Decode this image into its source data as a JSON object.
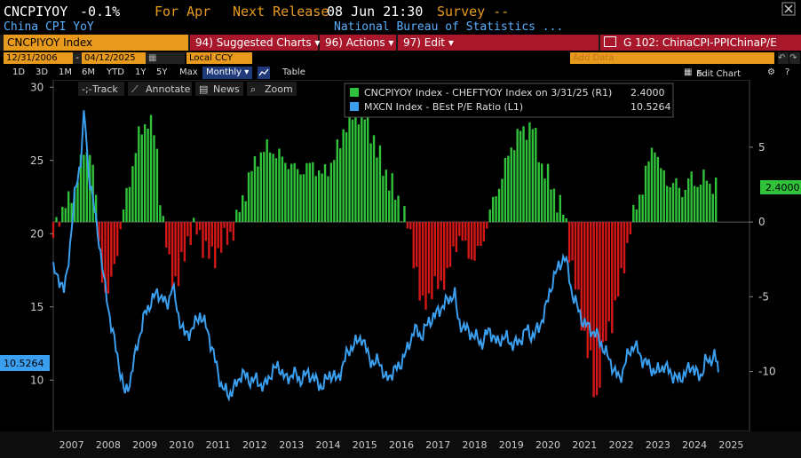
{
  "header": {
    "ticker": "CNCPIYOY",
    "change": "-0.1%",
    "period": "For Apr",
    "next_release_label": "Next Release",
    "next_release": "08 Jun 21:30",
    "survey": "Survey --",
    "subtitle": "China CPI YoY",
    "source": "National Bureau of Statistics ...",
    "close_icon": "close-icon"
  },
  "menu": {
    "security": "CNCPIYOY Index",
    "suggested": "94) Suggested Charts ▾",
    "actions": "96) Actions ▾",
    "edit": "97) Edit ▾",
    "chart_name": "G 102: ChinaCPI-PPIChinaP/E",
    "launch_icon": "launch-icon"
  },
  "controls": {
    "start_date": "12/31/2006",
    "end_date": "04/12/2025",
    "currency": "Local CCY",
    "add_data": "Add Data",
    "undo_icon": "undo-icon",
    "redo_icon": "redo-icon"
  },
  "tabs": {
    "items": [
      "1D",
      "3D",
      "1M",
      "6M",
      "YTD",
      "1Y",
      "5Y",
      "Max"
    ],
    "frequency": "Monthly ▾",
    "table": "Table",
    "edit_chart": "Edit Chart",
    "settings_icon": "gear-icon"
  },
  "tools": {
    "track": "Track",
    "annotate": "Annotate",
    "news": "News",
    "zoom": "Zoom"
  },
  "colors": {
    "green": "#2fc23a",
    "red": "#d41717",
    "blue": "#3b9ff0",
    "accent": "#e89a1c"
  },
  "chart_data": {
    "type": "bar",
    "x_ticks": [
      "2007",
      "2008",
      "2009",
      "2010",
      "2011",
      "2012",
      "2013",
      "2014",
      "2015",
      "2016",
      "2017",
      "2018",
      "2019",
      "2020",
      "2021",
      "2022",
      "2023",
      "2024",
      "2025"
    ],
    "y_left": {
      "ticks": [
        10,
        15,
        20,
        25,
        30
      ],
      "ylim": [
        6.5,
        30.5
      ]
    },
    "y_right": {
      "ticks": [
        -10,
        -5,
        0,
        5
      ],
      "ylim": [
        -14,
        9.5
      ]
    },
    "legend": [
      {
        "name": "CNCPIYOY Index - CHEFTYOY Index on 3/31/25 (R1)",
        "value": "2.4000",
        "color": "green"
      },
      {
        "name": "MXCN Index - BEst P/E Ratio (L1)",
        "value": "10.5264",
        "color": "blue"
      }
    ],
    "last_values": {
      "left": "10.5264",
      "right": "2.4000"
    },
    "series": [
      {
        "name": "CNCPIYOY Index - CHEFTYOY Index",
        "axis": "right",
        "type": "bar",
        "points": [
          [
            2007.0,
            -1.0
          ],
          [
            2007.25,
            1.0
          ],
          [
            2007.5,
            1.5
          ],
          [
            2007.75,
            4.0
          ],
          [
            2008.0,
            5.0
          ],
          [
            2008.1,
            3.5
          ],
          [
            2008.2,
            0.5
          ],
          [
            2008.3,
            -3.5
          ],
          [
            2008.5,
            -5.0
          ],
          [
            2008.7,
            -2.5
          ],
          [
            2008.9,
            0.5
          ],
          [
            2009.1,
            3.0
          ],
          [
            2009.3,
            5.5
          ],
          [
            2009.5,
            6.5
          ],
          [
            2009.6,
            7.0
          ],
          [
            2009.8,
            5.5
          ],
          [
            2009.95,
            1.0
          ],
          [
            2010.05,
            -1.0
          ],
          [
            2010.2,
            -3.5
          ],
          [
            2010.4,
            -4.0
          ],
          [
            2010.55,
            -2.5
          ],
          [
            2010.7,
            -0.8
          ],
          [
            2010.9,
            -0.5
          ],
          [
            2011.1,
            -1.5
          ],
          [
            2011.3,
            -2.5
          ],
          [
            2011.5,
            -2.0
          ],
          [
            2011.75,
            -1.0
          ],
          [
            2011.95,
            -0.5
          ],
          [
            2012.1,
            1.0
          ],
          [
            2012.35,
            3.0
          ],
          [
            2012.6,
            4.5
          ],
          [
            2012.9,
            5.0
          ],
          [
            2013.1,
            4.5
          ],
          [
            2013.4,
            4.0
          ],
          [
            2013.6,
            3.5
          ],
          [
            2013.9,
            3.5
          ],
          [
            2014.1,
            4.0
          ],
          [
            2014.3,
            3.0
          ],
          [
            2014.6,
            4.0
          ],
          [
            2014.8,
            5.0
          ],
          [
            2014.95,
            6.5
          ],
          [
            2015.1,
            6.8
          ],
          [
            2015.3,
            7.5
          ],
          [
            2015.5,
            7.0
          ],
          [
            2015.7,
            6.0
          ],
          [
            2015.85,
            4.5
          ],
          [
            2016.05,
            3.5
          ],
          [
            2016.3,
            2.0
          ],
          [
            2016.5,
            1.0
          ],
          [
            2016.7,
            -0.5
          ],
          [
            2016.9,
            -3.0
          ],
          [
            2017.05,
            -6.0
          ],
          [
            2017.2,
            -5.0
          ],
          [
            2017.4,
            -4.5
          ],
          [
            2017.6,
            -4.0
          ],
          [
            2017.8,
            -3.5
          ],
          [
            2017.95,
            -1.5
          ],
          [
            2018.1,
            -1.0
          ],
          [
            2018.3,
            -2.0
          ],
          [
            2018.5,
            -2.5
          ],
          [
            2018.7,
            -1.5
          ],
          [
            2018.9,
            0.5
          ],
          [
            2019.1,
            2.0
          ],
          [
            2019.3,
            3.5
          ],
          [
            2019.5,
            5.0
          ],
          [
            2019.7,
            6.0
          ],
          [
            2019.85,
            6.0
          ],
          [
            2020.0,
            6.5
          ],
          [
            2020.1,
            6.3
          ],
          [
            2020.3,
            4.0
          ],
          [
            2020.5,
            3.0
          ],
          [
            2020.75,
            1.5
          ],
          [
            2020.95,
            0.5
          ],
          [
            2021.1,
            -2.0
          ],
          [
            2021.3,
            -5.0
          ],
          [
            2021.5,
            -7.5
          ],
          [
            2021.7,
            -10.0
          ],
          [
            2021.8,
            -12.5
          ],
          [
            2021.9,
            -10.5
          ],
          [
            2022.05,
            -8.0
          ],
          [
            2022.25,
            -6.5
          ],
          [
            2022.45,
            -4.5
          ],
          [
            2022.6,
            -2.5
          ],
          [
            2022.7,
            -1.0
          ],
          [
            2022.85,
            0.5
          ],
          [
            2022.95,
            1.5
          ],
          [
            2023.1,
            2.5
          ],
          [
            2023.3,
            4.5
          ],
          [
            2023.4,
            5.5
          ],
          [
            2023.55,
            3.5
          ],
          [
            2023.7,
            3.0
          ],
          [
            2023.85,
            2.5
          ],
          [
            2024.0,
            2.5
          ],
          [
            2024.2,
            2.0
          ],
          [
            2024.4,
            3.0
          ],
          [
            2024.6,
            2.5
          ],
          [
            2024.8,
            3.0
          ],
          [
            2024.95,
            2.5
          ],
          [
            2025.1,
            2.4
          ]
        ]
      },
      {
        "name": "MXCN Index - BEst P/E Ratio",
        "axis": "left",
        "type": "line",
        "points": [
          [
            2007.0,
            17.5
          ],
          [
            2007.15,
            17.0
          ],
          [
            2007.3,
            16.0
          ],
          [
            2007.45,
            19.0
          ],
          [
            2007.6,
            23.0
          ],
          [
            2007.75,
            25.0
          ],
          [
            2007.85,
            28.5
          ],
          [
            2007.95,
            24.5
          ],
          [
            2008.1,
            22.0
          ],
          [
            2008.25,
            19.5
          ],
          [
            2008.4,
            16.5
          ],
          [
            2008.6,
            13.5
          ],
          [
            2008.8,
            11.0
          ],
          [
            2008.95,
            9.0
          ],
          [
            2009.1,
            10.0
          ],
          [
            2009.3,
            12.5
          ],
          [
            2009.5,
            14.5
          ],
          [
            2009.7,
            15.5
          ],
          [
            2009.85,
            16.0
          ],
          [
            2010.0,
            15.5
          ],
          [
            2010.1,
            15.0
          ],
          [
            2010.25,
            16.5
          ],
          [
            2010.4,
            14.5
          ],
          [
            2010.6,
            13.0
          ],
          [
            2010.8,
            13.5
          ],
          [
            2011.0,
            14.5
          ],
          [
            2011.2,
            13.5
          ],
          [
            2011.4,
            11.5
          ],
          [
            2011.6,
            9.5
          ],
          [
            2011.8,
            9.0
          ],
          [
            2011.95,
            9.5
          ],
          [
            2012.15,
            10.5
          ],
          [
            2012.35,
            10.0
          ],
          [
            2012.55,
            10.0
          ],
          [
            2012.75,
            9.5
          ],
          [
            2012.95,
            10.5
          ],
          [
            2013.15,
            11.0
          ],
          [
            2013.35,
            10.0
          ],
          [
            2013.55,
            10.5
          ],
          [
            2013.75,
            10.0
          ],
          [
            2013.95,
            10.5
          ],
          [
            2014.15,
            10.0
          ],
          [
            2014.35,
            9.5
          ],
          [
            2014.55,
            10.5
          ],
          [
            2014.75,
            10.0
          ],
          [
            2014.9,
            11.0
          ],
          [
            2015.05,
            12.0
          ],
          [
            2015.25,
            12.5
          ],
          [
            2015.4,
            13.0
          ],
          [
            2015.55,
            12.0
          ],
          [
            2015.75,
            11.0
          ],
          [
            2015.9,
            11.5
          ],
          [
            2016.05,
            10.0
          ],
          [
            2016.25,
            10.5
          ],
          [
            2016.45,
            11.0
          ],
          [
            2016.65,
            12.0
          ],
          [
            2016.85,
            13.5
          ],
          [
            2017.05,
            13.0
          ],
          [
            2017.25,
            14.0
          ],
          [
            2017.45,
            14.5
          ],
          [
            2017.6,
            15.0
          ],
          [
            2017.8,
            15.5
          ],
          [
            2017.95,
            16.0
          ],
          [
            2018.05,
            14.0
          ],
          [
            2018.25,
            13.5
          ],
          [
            2018.5,
            13.0
          ],
          [
            2018.7,
            12.5
          ],
          [
            2018.9,
            13.5
          ],
          [
            2019.1,
            12.5
          ],
          [
            2019.3,
            13.0
          ],
          [
            2019.5,
            12.5
          ],
          [
            2019.7,
            12.5
          ],
          [
            2019.9,
            13.5
          ],
          [
            2020.05,
            13.0
          ],
          [
            2020.25,
            13.5
          ],
          [
            2020.45,
            15.0
          ],
          [
            2020.65,
            17.0
          ],
          [
            2020.85,
            18.0
          ],
          [
            2020.95,
            18.5
          ],
          [
            2021.05,
            17.5
          ],
          [
            2021.15,
            16.0
          ],
          [
            2021.3,
            15.0
          ],
          [
            2021.45,
            14.0
          ],
          [
            2021.65,
            13.5
          ],
          [
            2021.85,
            13.0
          ],
          [
            2022.05,
            12.0
          ],
          [
            2022.25,
            11.0
          ],
          [
            2022.45,
            10.0
          ],
          [
            2022.65,
            11.5
          ],
          [
            2022.85,
            12.5
          ],
          [
            2023.05,
            11.5
          ],
          [
            2023.25,
            11.0
          ],
          [
            2023.45,
            10.5
          ],
          [
            2023.65,
            11.0
          ],
          [
            2023.85,
            10.5
          ],
          [
            2024.05,
            10.0
          ],
          [
            2024.25,
            10.5
          ],
          [
            2024.45,
            11.0
          ],
          [
            2024.65,
            10.0
          ],
          [
            2024.8,
            11.5
          ],
          [
            2024.9,
            11.0
          ],
          [
            2025.05,
            12.0
          ],
          [
            2025.15,
            10.53
          ]
        ]
      }
    ]
  }
}
